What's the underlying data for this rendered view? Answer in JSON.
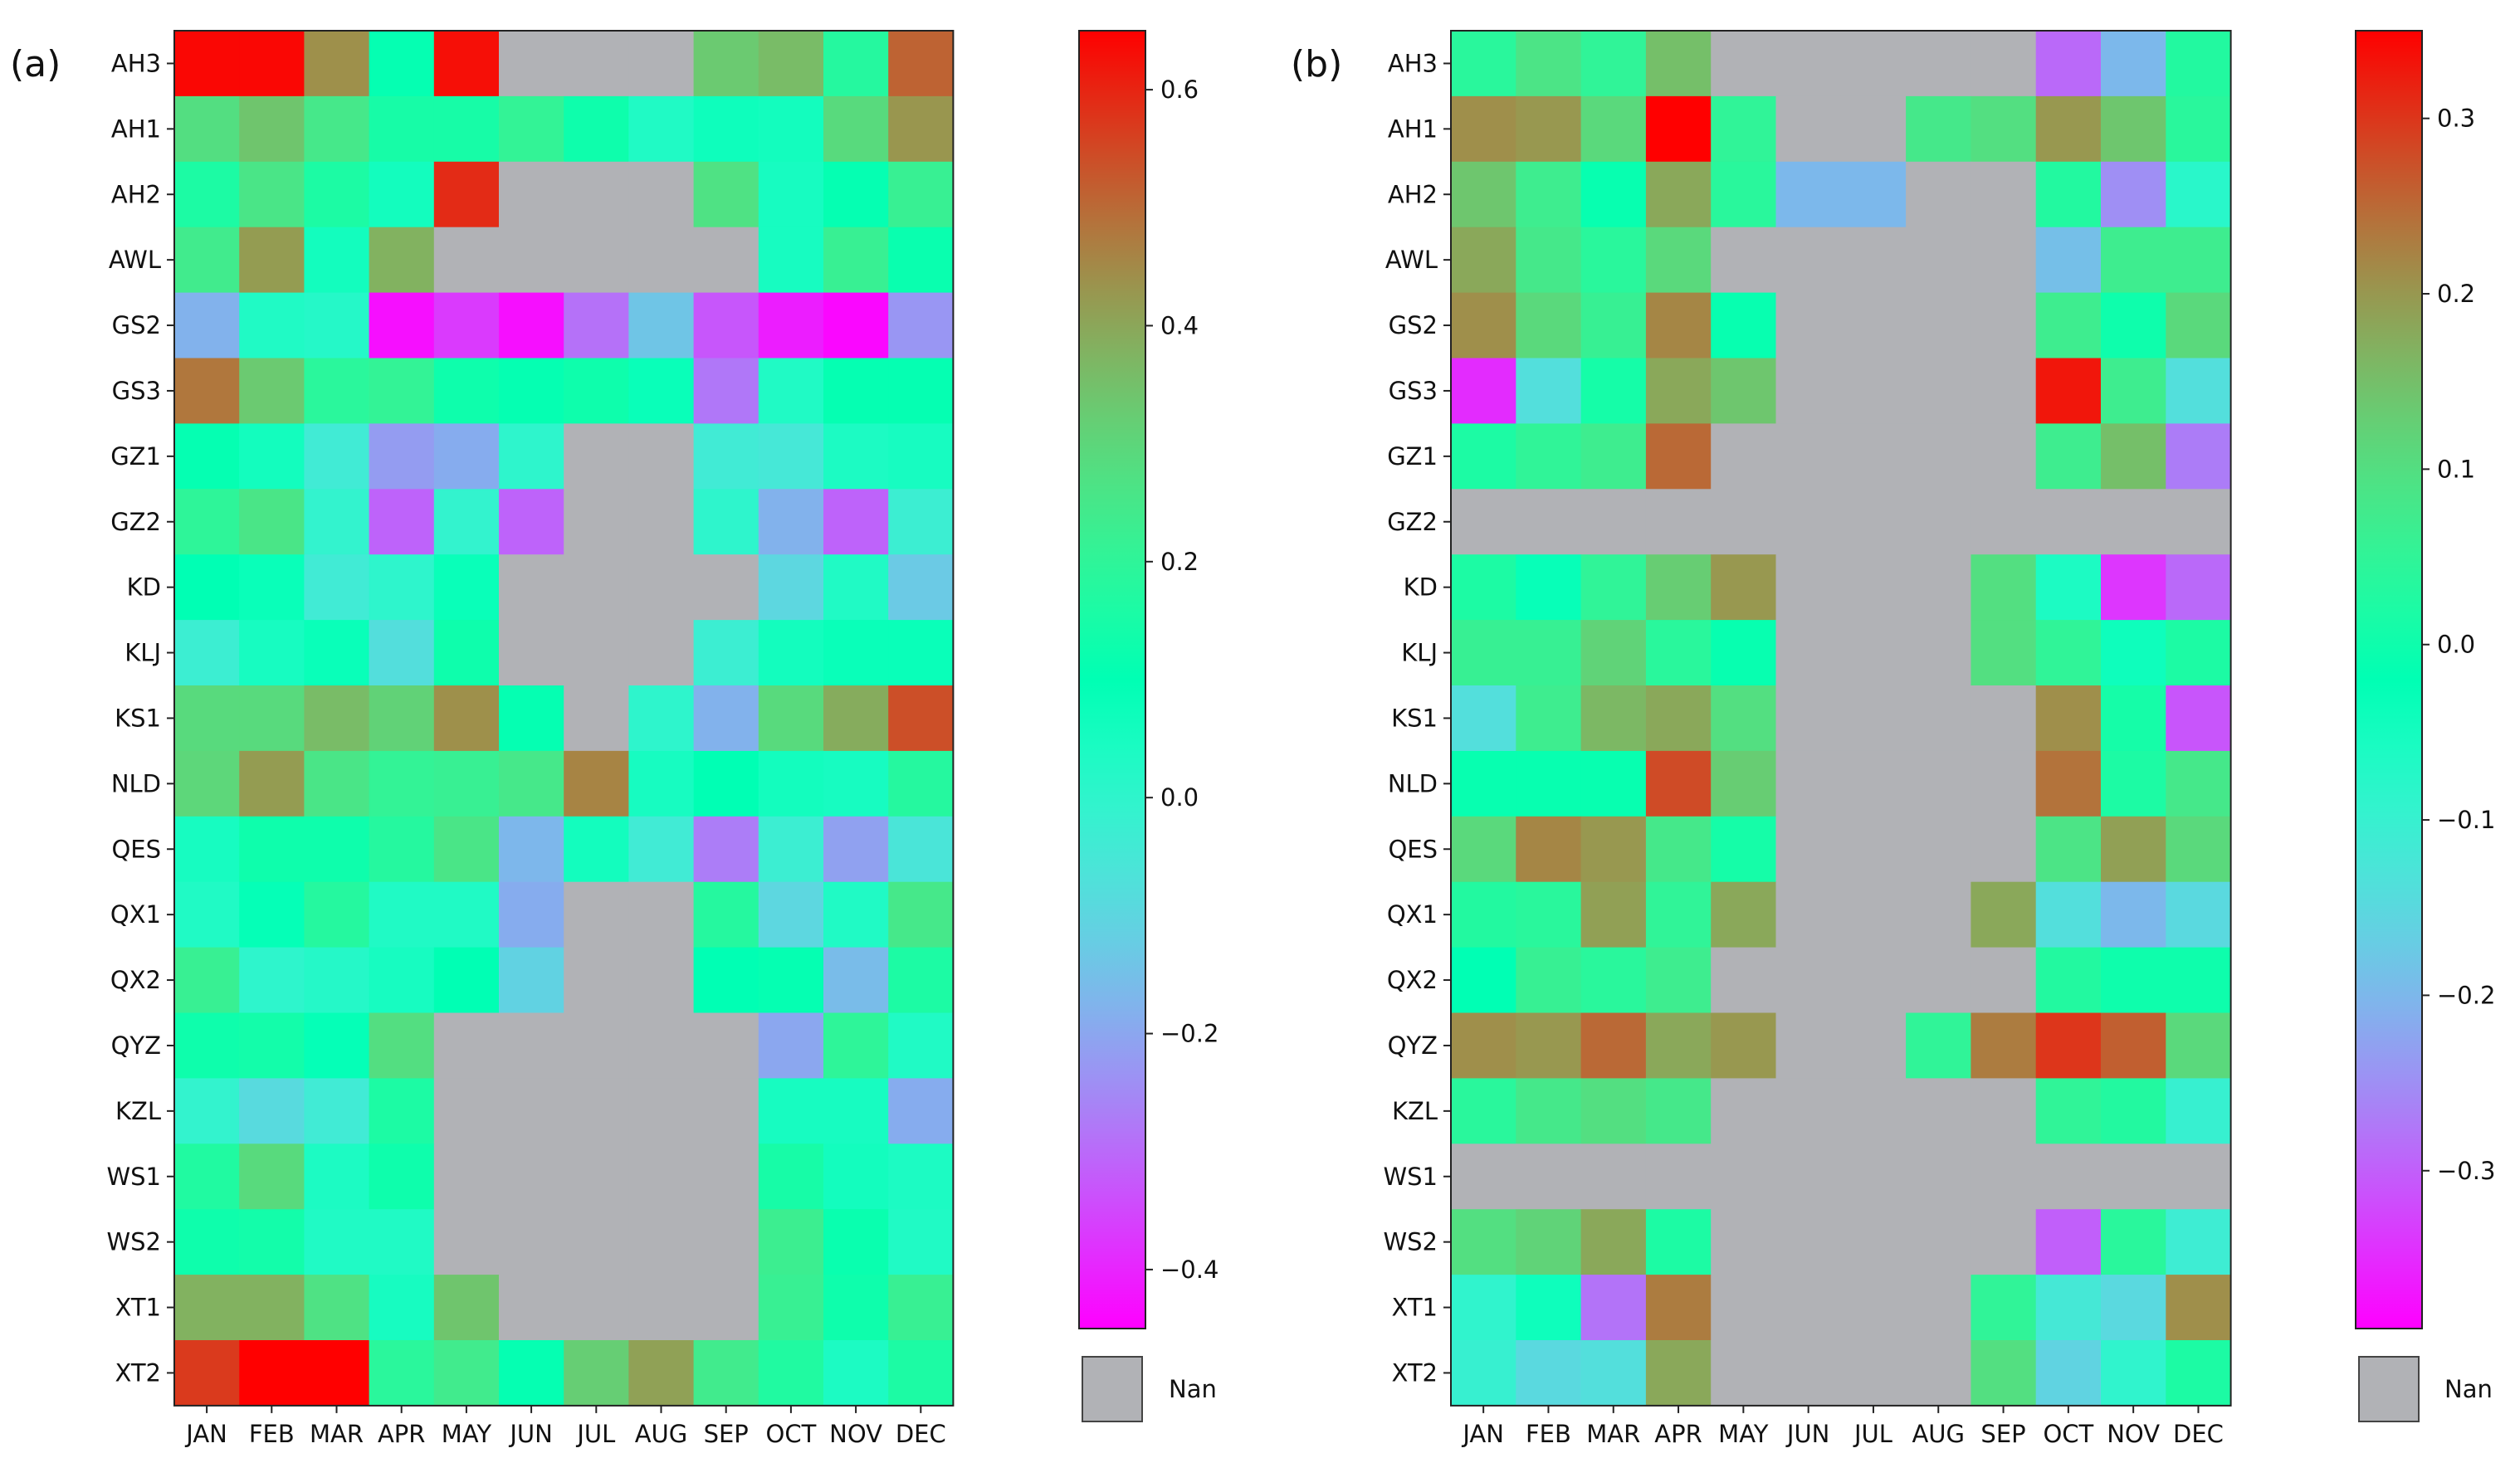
{
  "chart_data": [
    {
      "type": "heatmap",
      "panel_label": "(a)",
      "x_categories": [
        "JAN",
        "FEB",
        "MAR",
        "APR",
        "MAY",
        "JUN",
        "JUL",
        "AUG",
        "SEP",
        "OCT",
        "NOV",
        "DEC"
      ],
      "y_categories": [
        "AH3",
        "AH1",
        "AH2",
        "AWL",
        "GS2",
        "GS3",
        "GZ1",
        "GZ2",
        "KD",
        "KLJ",
        "KS1",
        "NLD",
        "QES",
        "QX1",
        "QX2",
        "QYZ",
        "KZL",
        "WS1",
        "WS2",
        "XT1",
        "XT2"
      ],
      "values": [
        [
          0.64,
          0.64,
          0.44,
          0.11,
          0.63,
          null,
          null,
          null,
          0.33,
          0.36,
          0.18,
          0.51
        ],
        [
          0.28,
          0.34,
          0.25,
          0.15,
          0.15,
          0.21,
          0.13,
          0.03,
          0.07,
          0.06,
          0.29,
          0.43
        ],
        [
          0.16,
          0.26,
          0.16,
          0.06,
          0.59,
          null,
          null,
          null,
          0.27,
          0.05,
          0.11,
          0.22
        ],
        [
          0.24,
          0.42,
          0.06,
          0.38,
          null,
          null,
          null,
          null,
          null,
          0.05,
          0.22,
          0.12
        ],
        [
          -0.18,
          0.03,
          0.02,
          -0.43,
          -0.37,
          -0.43,
          -0.29,
          -0.14,
          -0.33,
          -0.41,
          -0.44,
          -0.23
        ],
        [
          0.48,
          0.33,
          0.19,
          0.21,
          0.13,
          0.11,
          0.13,
          0.08,
          -0.28,
          0.03,
          0.11,
          0.11
        ],
        [
          0.11,
          0.06,
          -0.04,
          -0.22,
          -0.19,
          0.0,
          null,
          null,
          -0.04,
          -0.05,
          0.04,
          0.05
        ],
        [
          0.2,
          0.26,
          -0.01,
          -0.31,
          -0.01,
          -0.31,
          null,
          null,
          0.0,
          -0.18,
          -0.31,
          -0.03
        ],
        [
          0.1,
          0.08,
          -0.04,
          0.0,
          0.08,
          null,
          null,
          null,
          null,
          -0.1,
          0.03,
          -0.13
        ],
        [
          -0.03,
          0.05,
          0.08,
          -0.08,
          0.13,
          null,
          null,
          null,
          -0.03,
          0.06,
          0.08,
          0.08
        ],
        [
          0.29,
          0.29,
          0.36,
          0.31,
          0.44,
          0.11,
          null,
          0.0,
          -0.18,
          0.29,
          0.39,
          0.54
        ],
        [
          0.3,
          0.42,
          0.26,
          0.21,
          0.22,
          0.25,
          0.46,
          0.05,
          0.1,
          0.06,
          0.05,
          0.18
        ],
        [
          0.05,
          0.13,
          0.13,
          0.18,
          0.26,
          -0.17,
          0.06,
          -0.04,
          -0.27,
          -0.03,
          -0.21,
          -0.06
        ],
        [
          0.03,
          0.09,
          0.18,
          0.03,
          0.03,
          -0.19,
          null,
          null,
          0.18,
          -0.1,
          0.03,
          0.25
        ],
        [
          0.22,
          0.0,
          0.02,
          0.05,
          0.1,
          -0.11,
          null,
          null,
          0.1,
          0.11,
          -0.16,
          0.16
        ],
        [
          0.13,
          0.14,
          0.09,
          0.28,
          null,
          null,
          null,
          null,
          null,
          -0.2,
          0.2,
          0.03
        ],
        [
          -0.01,
          -0.09,
          -0.04,
          0.16,
          null,
          null,
          null,
          null,
          null,
          0.05,
          0.05,
          -0.19
        ],
        [
          0.17,
          0.29,
          0.04,
          0.13,
          null,
          null,
          null,
          null,
          null,
          0.15,
          0.06,
          0.04
        ],
        [
          0.13,
          0.14,
          0.03,
          0.03,
          null,
          null,
          null,
          null,
          null,
          0.23,
          0.12,
          0.03
        ],
        [
          0.38,
          0.38,
          0.27,
          0.05,
          0.34,
          null,
          null,
          null,
          null,
          0.22,
          0.13,
          0.22
        ],
        [
          0.57,
          0.66,
          0.66,
          0.19,
          0.24,
          0.11,
          0.32,
          0.41,
          0.24,
          0.17,
          0.04,
          0.16
        ]
      ],
      "colorbar": {
        "min": -0.45,
        "max": 0.65,
        "ticks": [
          0.6,
          0.4,
          0.2,
          0.0,
          -0.2,
          -0.4
        ],
        "tick_labels": [
          "0.6",
          "0.4",
          "0.2",
          "0.0",
          "−0.2",
          "−0.4"
        ]
      },
      "nan_legend_label": "Nan"
    },
    {
      "type": "heatmap",
      "panel_label": "(b)",
      "x_categories": [
        "JAN",
        "FEB",
        "MAR",
        "APR",
        "MAY",
        "JUN",
        "JUL",
        "AUG",
        "SEP",
        "OCT",
        "NOV",
        "DEC"
      ],
      "y_categories": [
        "AH3",
        "AH1",
        "AH2",
        "AWL",
        "GS2",
        "GS3",
        "GZ1",
        "GZ2",
        "KD",
        "KLJ",
        "KS1",
        "NLD",
        "QES",
        "QX1",
        "QX2",
        "QYZ",
        "KZL",
        "WS1",
        "WS2",
        "XT1",
        "XT2"
      ],
      "values": [
        [
          0.04,
          0.09,
          0.05,
          0.15,
          null,
          null,
          null,
          null,
          null,
          -0.29,
          -0.2,
          0.03
        ],
        [
          0.21,
          0.2,
          0.11,
          0.35,
          0.05,
          null,
          null,
          0.08,
          0.1,
          0.2,
          0.14,
          0.04
        ],
        [
          0.14,
          0.07,
          -0.01,
          0.18,
          0.04,
          -0.2,
          -0.2,
          null,
          null,
          0.03,
          -0.25,
          -0.08
        ],
        [
          0.18,
          0.08,
          0.04,
          0.11,
          null,
          null,
          null,
          null,
          null,
          -0.19,
          0.07,
          0.07
        ],
        [
          0.21,
          0.11,
          0.06,
          0.22,
          -0.01,
          null,
          null,
          null,
          null,
          0.07,
          0.0,
          0.11
        ],
        [
          -0.35,
          -0.14,
          0.01,
          0.18,
          0.14,
          null,
          null,
          null,
          null,
          0.33,
          0.07,
          -0.14
        ],
        [
          0.02,
          0.05,
          0.07,
          0.25,
          null,
          null,
          null,
          null,
          null,
          0.07,
          0.15,
          -0.27
        ],
        [
          null,
          null,
          null,
          null,
          null,
          null,
          null,
          null,
          null,
          null,
          null,
          null
        ],
        [
          0.02,
          -0.03,
          0.05,
          0.13,
          0.2,
          null,
          null,
          null,
          0.1,
          -0.06,
          -0.34,
          -0.29
        ],
        [
          0.06,
          0.06,
          0.12,
          0.04,
          -0.01,
          null,
          null,
          null,
          0.1,
          0.05,
          -0.04,
          0.02
        ],
        [
          -0.14,
          0.07,
          0.16,
          0.18,
          0.1,
          null,
          null,
          null,
          null,
          0.21,
          0.01,
          -0.31
        ],
        [
          -0.01,
          -0.01,
          -0.01,
          0.28,
          0.13,
          null,
          null,
          null,
          null,
          0.24,
          0.02,
          0.08
        ],
        [
          0.11,
          0.22,
          0.2,
          0.08,
          0.01,
          null,
          null,
          null,
          null,
          0.09,
          0.19,
          0.11
        ],
        [
          0.03,
          0.04,
          0.19,
          0.05,
          0.18,
          null,
          null,
          null,
          0.18,
          -0.14,
          -0.2,
          -0.15
        ],
        [
          -0.02,
          0.06,
          0.04,
          0.07,
          null,
          null,
          null,
          null,
          null,
          0.03,
          0.0,
          0.0
        ],
        [
          0.21,
          0.2,
          0.25,
          0.18,
          0.2,
          null,
          null,
          0.05,
          0.23,
          0.3,
          0.26,
          0.11
        ],
        [
          0.04,
          0.08,
          0.1,
          0.08,
          null,
          null,
          null,
          null,
          null,
          0.05,
          0.03,
          -0.1
        ],
        [
          null,
          null,
          null,
          null,
          null,
          null,
          null,
          null,
          null,
          null,
          null,
          null
        ],
        [
          0.1,
          0.12,
          0.18,
          0.02,
          null,
          null,
          null,
          null,
          null,
          -0.3,
          0.04,
          -0.11
        ],
        [
          -0.09,
          -0.04,
          -0.28,
          0.23,
          null,
          null,
          null,
          null,
          0.05,
          -0.12,
          -0.15,
          0.21
        ],
        [
          -0.1,
          -0.15,
          -0.14,
          0.18,
          null,
          null,
          null,
          null,
          0.1,
          -0.16,
          -0.09,
          0.02
        ]
      ],
      "colorbar": {
        "min": -0.39,
        "max": 0.35,
        "ticks": [
          0.3,
          0.2,
          0.1,
          0.0,
          -0.1,
          -0.2,
          -0.3
        ],
        "tick_labels": [
          "0.3",
          "0.2",
          "0.1",
          "0.0",
          "−0.1",
          "−0.2",
          "−0.3"
        ]
      },
      "nan_legend_label": "Nan"
    }
  ],
  "colors": {
    "nan": "#b1b2b6",
    "frame": "#222222"
  },
  "colormap": "rainbow"
}
